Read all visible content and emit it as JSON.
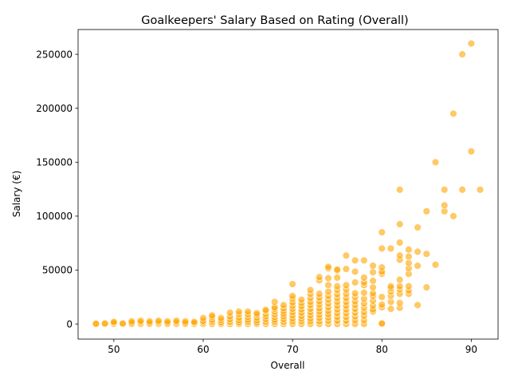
{
  "chart_data": {
    "type": "scatter",
    "title": "Goalkeepers' Salary Based on Rating (Overall)",
    "xlabel": "Overall",
    "ylabel": "Salary (€)",
    "xlim": [
      46,
      93
    ],
    "ylim": [
      -14000,
      273000
    ],
    "xticks": [
      50,
      60,
      70,
      80,
      90
    ],
    "yticks": [
      0,
      50000,
      100000,
      150000,
      200000,
      250000
    ],
    "grid": false,
    "legend": "none",
    "point_color": "#FFA500",
    "point_edge_color": "#ffffff",
    "point_opacity": 0.6,
    "points": [
      [
        48,
        0
      ],
      [
        48,
        300
      ],
      [
        49,
        0
      ],
      [
        49,
        500
      ],
      [
        50,
        0
      ],
      [
        50,
        1000
      ],
      [
        50,
        2000
      ],
      [
        51,
        0
      ],
      [
        51,
        500
      ],
      [
        52,
        0
      ],
      [
        52,
        1000
      ],
      [
        52,
        2500
      ],
      [
        53,
        0
      ],
      [
        53,
        1500
      ],
      [
        53,
        3000
      ],
      [
        54,
        0
      ],
      [
        54,
        1000
      ],
      [
        54,
        2500
      ],
      [
        55,
        0
      ],
      [
        55,
        1500
      ],
      [
        55,
        3000
      ],
      [
        56,
        0
      ],
      [
        56,
        1000
      ],
      [
        56,
        2500
      ],
      [
        57,
        0
      ],
      [
        57,
        1500
      ],
      [
        57,
        3000
      ],
      [
        58,
        0
      ],
      [
        58,
        1000
      ],
      [
        58,
        2500
      ],
      [
        59,
        0
      ],
      [
        59,
        1000
      ],
      [
        59,
        2000
      ],
      [
        60,
        0
      ],
      [
        60,
        1500
      ],
      [
        60,
        3000
      ],
      [
        60,
        5500
      ],
      [
        61,
        0
      ],
      [
        61,
        2000
      ],
      [
        61,
        4000
      ],
      [
        61,
        6500
      ],
      [
        61,
        8000
      ],
      [
        62,
        0
      ],
      [
        62,
        1500
      ],
      [
        62,
        3500
      ],
      [
        62,
        5500
      ],
      [
        63,
        0
      ],
      [
        63,
        2000
      ],
      [
        63,
        4500
      ],
      [
        63,
        7000
      ],
      [
        63,
        10500
      ],
      [
        64,
        0
      ],
      [
        64,
        1500
      ],
      [
        64,
        3500
      ],
      [
        64,
        6000
      ],
      [
        64,
        9000
      ],
      [
        64,
        11500
      ],
      [
        65,
        0
      ],
      [
        65,
        2000
      ],
      [
        65,
        4000
      ],
      [
        65,
        6500
      ],
      [
        65,
        9000
      ],
      [
        65,
        11500
      ],
      [
        66,
        0
      ],
      [
        66,
        1500
      ],
      [
        66,
        3500
      ],
      [
        66,
        6000
      ],
      [
        66,
        8500
      ],
      [
        66,
        10000
      ],
      [
        67,
        0
      ],
      [
        67,
        2000
      ],
      [
        67,
        4500
      ],
      [
        67,
        7000
      ],
      [
        67,
        9500
      ],
      [
        67,
        12000
      ],
      [
        67,
        13000
      ],
      [
        68,
        0
      ],
      [
        68,
        2000
      ],
      [
        68,
        4000
      ],
      [
        68,
        6500
      ],
      [
        68,
        9000
      ],
      [
        68,
        11500
      ],
      [
        68,
        14000
      ],
      [
        68,
        15500
      ],
      [
        68,
        20500
      ],
      [
        69,
        0
      ],
      [
        69,
        2000
      ],
      [
        69,
        4500
      ],
      [
        69,
        7000
      ],
      [
        69,
        9500
      ],
      [
        69,
        12000
      ],
      [
        69,
        14500
      ],
      [
        69,
        17500
      ],
      [
        70,
        0
      ],
      [
        70,
        2500
      ],
      [
        70,
        5000
      ],
      [
        70,
        8000
      ],
      [
        70,
        11000
      ],
      [
        70,
        14000
      ],
      [
        70,
        17000
      ],
      [
        70,
        20000
      ],
      [
        70,
        23500
      ],
      [
        70,
        26000
      ],
      [
        70,
        37000
      ],
      [
        71,
        0
      ],
      [
        71,
        2500
      ],
      [
        71,
        5000
      ],
      [
        71,
        7500
      ],
      [
        71,
        10500
      ],
      [
        71,
        13500
      ],
      [
        71,
        16500
      ],
      [
        71,
        19500
      ],
      [
        71,
        22500
      ],
      [
        72,
        0
      ],
      [
        72,
        2500
      ],
      [
        72,
        5000
      ],
      [
        72,
        8000
      ],
      [
        72,
        11000
      ],
      [
        72,
        14000
      ],
      [
        72,
        17500
      ],
      [
        72,
        20500
      ],
      [
        72,
        24000
      ],
      [
        72,
        28000
      ],
      [
        72,
        31500
      ],
      [
        73,
        0
      ],
      [
        73,
        2500
      ],
      [
        73,
        5500
      ],
      [
        73,
        8500
      ],
      [
        73,
        11500
      ],
      [
        73,
        14500
      ],
      [
        73,
        18000
      ],
      [
        73,
        21000
      ],
      [
        73,
        24500
      ],
      [
        73,
        28000
      ],
      [
        73,
        40500
      ],
      [
        73,
        43500
      ],
      [
        74,
        0
      ],
      [
        74,
        3000
      ],
      [
        74,
        6000
      ],
      [
        74,
        9000
      ],
      [
        74,
        12000
      ],
      [
        74,
        15500
      ],
      [
        74,
        19000
      ],
      [
        74,
        22500
      ],
      [
        74,
        26000
      ],
      [
        74,
        30000
      ],
      [
        74,
        36000
      ],
      [
        74,
        42500
      ],
      [
        74,
        51500
      ],
      [
        74,
        53000
      ],
      [
        75,
        0
      ],
      [
        75,
        3000
      ],
      [
        75,
        6500
      ],
      [
        75,
        10000
      ],
      [
        75,
        13500
      ],
      [
        75,
        17000
      ],
      [
        75,
        20500
      ],
      [
        75,
        24000
      ],
      [
        75,
        27500
      ],
      [
        75,
        31500
      ],
      [
        75,
        35000
      ],
      [
        75,
        43000
      ],
      [
        75,
        49500
      ],
      [
        75,
        50500
      ],
      [
        76,
        0
      ],
      [
        76,
        3000
      ],
      [
        76,
        6500
      ],
      [
        76,
        10000
      ],
      [
        76,
        13500
      ],
      [
        76,
        17000
      ],
      [
        76,
        20500
      ],
      [
        76,
        24000
      ],
      [
        76,
        28000
      ],
      [
        76,
        32000
      ],
      [
        76,
        36000
      ],
      [
        76,
        51000
      ],
      [
        76,
        63500
      ],
      [
        77,
        0
      ],
      [
        77,
        3500
      ],
      [
        77,
        7000
      ],
      [
        77,
        10500
      ],
      [
        77,
        14000
      ],
      [
        77,
        17500
      ],
      [
        77,
        21000
      ],
      [
        77,
        25000
      ],
      [
        77,
        28500
      ],
      [
        77,
        38500
      ],
      [
        77,
        48500
      ],
      [
        77,
        59000
      ],
      [
        78,
        0
      ],
      [
        78,
        3500
      ],
      [
        78,
        7500
      ],
      [
        78,
        11000
      ],
      [
        78,
        15000
      ],
      [
        78,
        19000
      ],
      [
        78,
        23500
      ],
      [
        78,
        29000
      ],
      [
        78,
        36000
      ],
      [
        78,
        38500
      ],
      [
        78,
        43000
      ],
      [
        78,
        59000
      ],
      [
        79,
        11500
      ],
      [
        79,
        13500
      ],
      [
        79,
        17000
      ],
      [
        79,
        21500
      ],
      [
        79,
        26000
      ],
      [
        79,
        28500
      ],
      [
        79,
        34000
      ],
      [
        79,
        40000
      ],
      [
        79,
        48000
      ],
      [
        79,
        54000
      ],
      [
        80,
        0
      ],
      [
        80,
        500
      ],
      [
        80,
        15500
      ],
      [
        80,
        18000
      ],
      [
        80,
        25000
      ],
      [
        80,
        46500
      ],
      [
        80,
        48500
      ],
      [
        80,
        52500
      ],
      [
        80,
        70000
      ],
      [
        80,
        85000
      ],
      [
        81,
        14000
      ],
      [
        81,
        20500
      ],
      [
        81,
        26000
      ],
      [
        81,
        30000
      ],
      [
        81,
        33000
      ],
      [
        81,
        35000
      ],
      [
        81,
        70000
      ],
      [
        82,
        15000
      ],
      [
        82,
        19500
      ],
      [
        82,
        28000
      ],
      [
        82,
        32000
      ],
      [
        82,
        35000
      ],
      [
        82,
        41000
      ],
      [
        82,
        59500
      ],
      [
        82,
        63500
      ],
      [
        82,
        75500
      ],
      [
        82,
        92500
      ],
      [
        82,
        124500
      ],
      [
        83,
        28000
      ],
      [
        83,
        31000
      ],
      [
        83,
        35000
      ],
      [
        83,
        46500
      ],
      [
        83,
        51500
      ],
      [
        83,
        56500
      ],
      [
        83,
        62500
      ],
      [
        83,
        69000
      ],
      [
        84,
        17500
      ],
      [
        84,
        54000
      ],
      [
        84,
        67000
      ],
      [
        84,
        89500
      ],
      [
        85,
        34000
      ],
      [
        85,
        65000
      ],
      [
        85,
        104500
      ],
      [
        86,
        55000
      ],
      [
        86,
        150000
      ],
      [
        87,
        104500
      ],
      [
        87,
        110000
      ],
      [
        87,
        124500
      ],
      [
        88,
        100000
      ],
      [
        88,
        195000
      ],
      [
        89,
        124500
      ],
      [
        89,
        250000
      ],
      [
        90,
        160000
      ],
      [
        90,
        260000
      ],
      [
        91,
        124500
      ]
    ]
  }
}
